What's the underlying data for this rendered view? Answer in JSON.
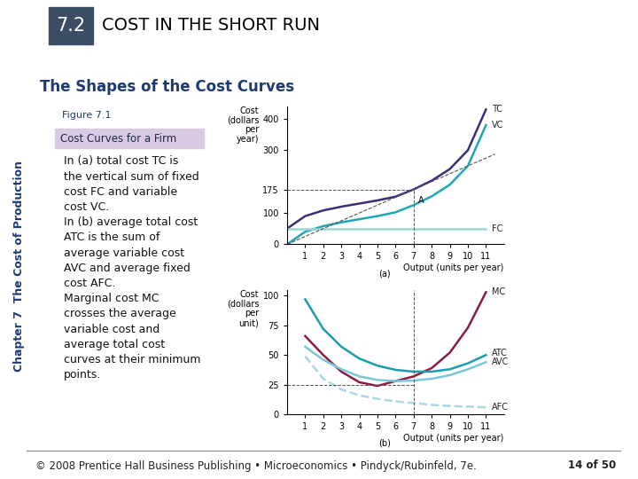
{
  "slide": {
    "section": "7.2",
    "heading": "COST IN THE SHORT RUN",
    "subtitle": "The Shapes of the Cost Curves",
    "figure_number": "Figure 7.1",
    "figure_title": "Cost Curves for a Firm",
    "caption_lines": [
      "In (a) total cost TC is",
      "the vertical sum of fixed",
      "cost FC and variable",
      "cost VC.",
      "In (b) average total cost",
      "ATC is the sum of",
      "average variable cost",
      "AVC and average fixed",
      "cost AFC.",
      "Marginal cost MC",
      "crosses the average",
      "variable cost and",
      "average total cost",
      "curves at their minimum",
      "points."
    ],
    "side_label": "Chapter 7  The Cost of Production",
    "footer": "© 2008 Prentice Hall Business Publishing • Microeconomics • Pindyck/Rubinfeld, 7e.",
    "page": "14 of 50"
  },
  "chart_data": [
    {
      "type": "line",
      "panel": "(a)",
      "y_label": "Cost\n(dollars\nper\nyear)",
      "x_label": "Output (units per year)",
      "xlim": [
        0,
        12
      ],
      "xticks": [
        1,
        2,
        3,
        4,
        5,
        6,
        7,
        8,
        9,
        10,
        11
      ],
      "ylim": [
        0,
        440
      ],
      "yticks": [
        0,
        100,
        175,
        300,
        400
      ],
      "x": [
        0,
        1,
        2,
        3,
        4,
        5,
        6,
        7,
        8,
        9,
        10,
        11
      ],
      "series": [
        {
          "name": "TC",
          "color": "#3b2f7a",
          "values": [
            50,
            90,
            108,
            120,
            130,
            140,
            152,
            175,
            203,
            240,
            300,
            430
          ]
        },
        {
          "name": "VC",
          "color": "#20a7b5",
          "values": [
            0,
            40,
            58,
            70,
            80,
            90,
            102,
            125,
            153,
            190,
            250,
            380
          ]
        },
        {
          "name": "FC",
          "color": "#9ad7d6",
          "values": [
            50,
            50,
            50,
            50,
            50,
            50,
            50,
            50,
            50,
            50,
            50,
            50
          ]
        }
      ],
      "ray": {
        "x": [
          0,
          11.5
        ],
        "values": [
          0,
          287.5
        ],
        "color": "#555555",
        "line_style": "dashed"
      },
      "point": {
        "label": "A",
        "x": 7,
        "y": 175
      }
    },
    {
      "type": "line",
      "panel": "(b)",
      "y_label": "Cost\n(dollars\nper\nunit)",
      "x_label": "Output (units per year)",
      "xlim": [
        0,
        12
      ],
      "xticks": [
        1,
        2,
        3,
        4,
        5,
        6,
        7,
        8,
        9,
        10,
        11
      ],
      "ylim": [
        0,
        105
      ],
      "yticks": [
        0,
        25,
        50,
        75,
        100
      ],
      "x": [
        1,
        2,
        3,
        4,
        5,
        6,
        7,
        8,
        9,
        10,
        11
      ],
      "series": [
        {
          "name": "MC",
          "color": "#8b1c3d",
          "values": [
            66,
            50,
            36,
            27,
            24,
            28,
            32,
            39,
            52,
            73,
            103
          ]
        },
        {
          "name": "ATC",
          "color": "#1e9bb0",
          "values": [
            97,
            72,
            57,
            47,
            41,
            37.5,
            36,
            36,
            38,
            43,
            50
          ]
        },
        {
          "name": "AVC",
          "color": "#7cc6db",
          "values": [
            57,
            46,
            38,
            32,
            29,
            28,
            28.5,
            30,
            33,
            38,
            44
          ]
        },
        {
          "name": "AFC",
          "color": "#a9d9e3",
          "line_style": "dashed",
          "values": [
            49,
            30,
            21,
            16,
            13,
            11,
            9.5,
            8,
            7,
            6.5,
            6
          ]
        }
      ],
      "guide": {
        "x": 7,
        "y": 25
      }
    }
  ]
}
